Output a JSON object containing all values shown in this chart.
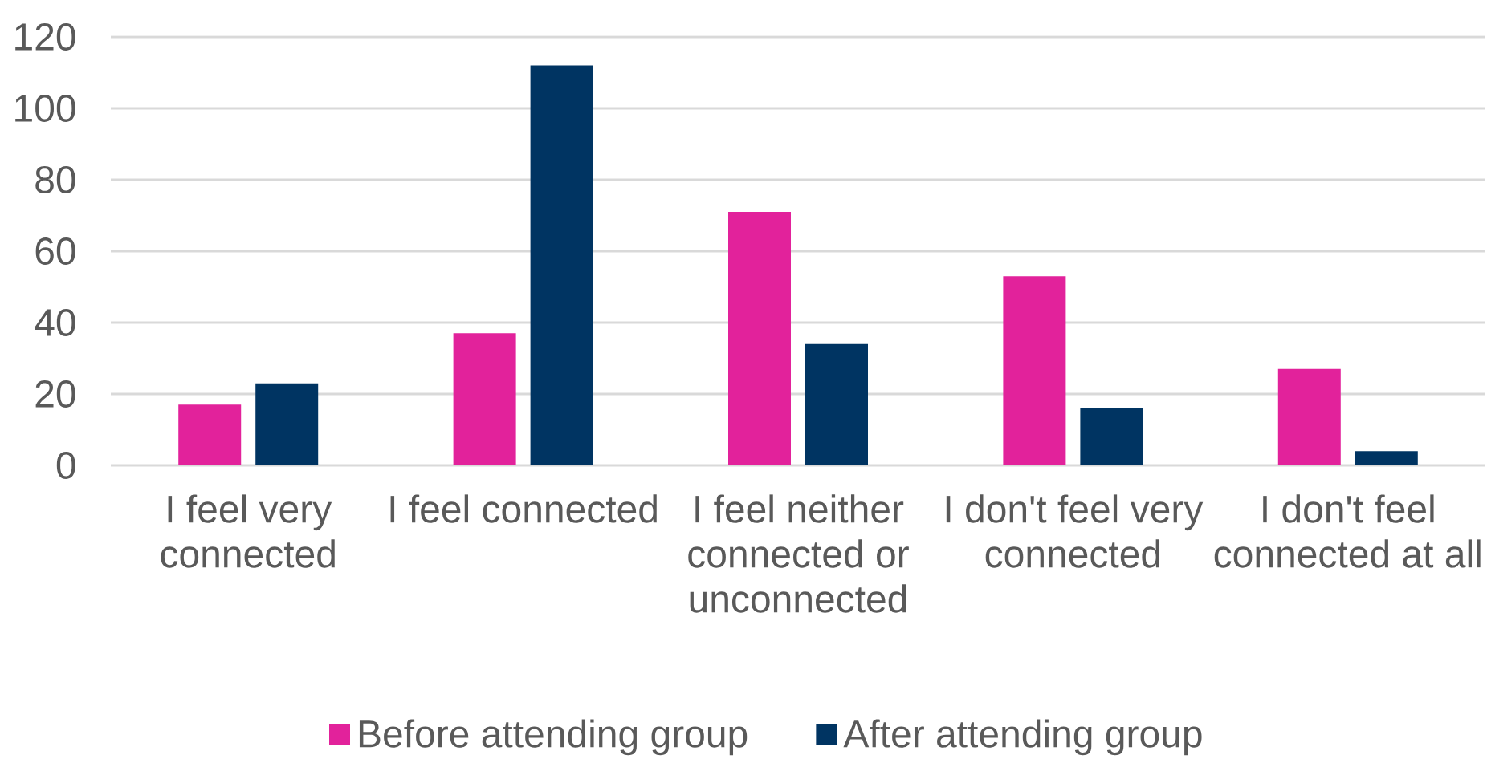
{
  "chart_data": {
    "type": "bar",
    "categories": [
      "I feel very connected",
      "I feel connected",
      "I feel neither connected or unconnected",
      "I don't feel very connected",
      "I don't feel connected at all"
    ],
    "series": [
      {
        "name": "Before attending group",
        "color": "#e2229b",
        "values": [
          17,
          37,
          71,
          53,
          27
        ]
      },
      {
        "name": "After attending group",
        "color": "#003462",
        "values": [
          23,
          112,
          34,
          16,
          4
        ]
      }
    ],
    "ylim": [
      0,
      120
    ],
    "yticks": [
      0,
      20,
      40,
      60,
      80,
      100,
      120
    ],
    "grid": "y",
    "legend": "bottom"
  }
}
